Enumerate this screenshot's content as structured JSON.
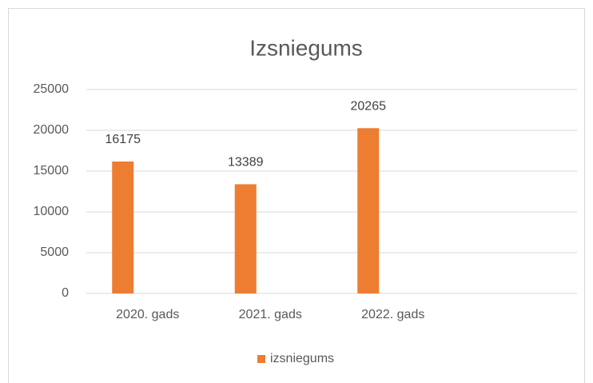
{
  "chart_data": {
    "type": "bar",
    "title": "Izsniegums",
    "categories": [
      "2020. gads",
      "2021. gads",
      "2022. gads",
      null
    ],
    "series": [
      {
        "name": "izsniegums",
        "color": "#ed7d31",
        "values": [
          16175,
          13389,
          20265,
          null
        ]
      }
    ],
    "ylim": [
      0,
      25000
    ],
    "yticks": [
      0,
      5000,
      10000,
      15000,
      20000,
      25000
    ],
    "grid": true,
    "legend": "bottom"
  }
}
